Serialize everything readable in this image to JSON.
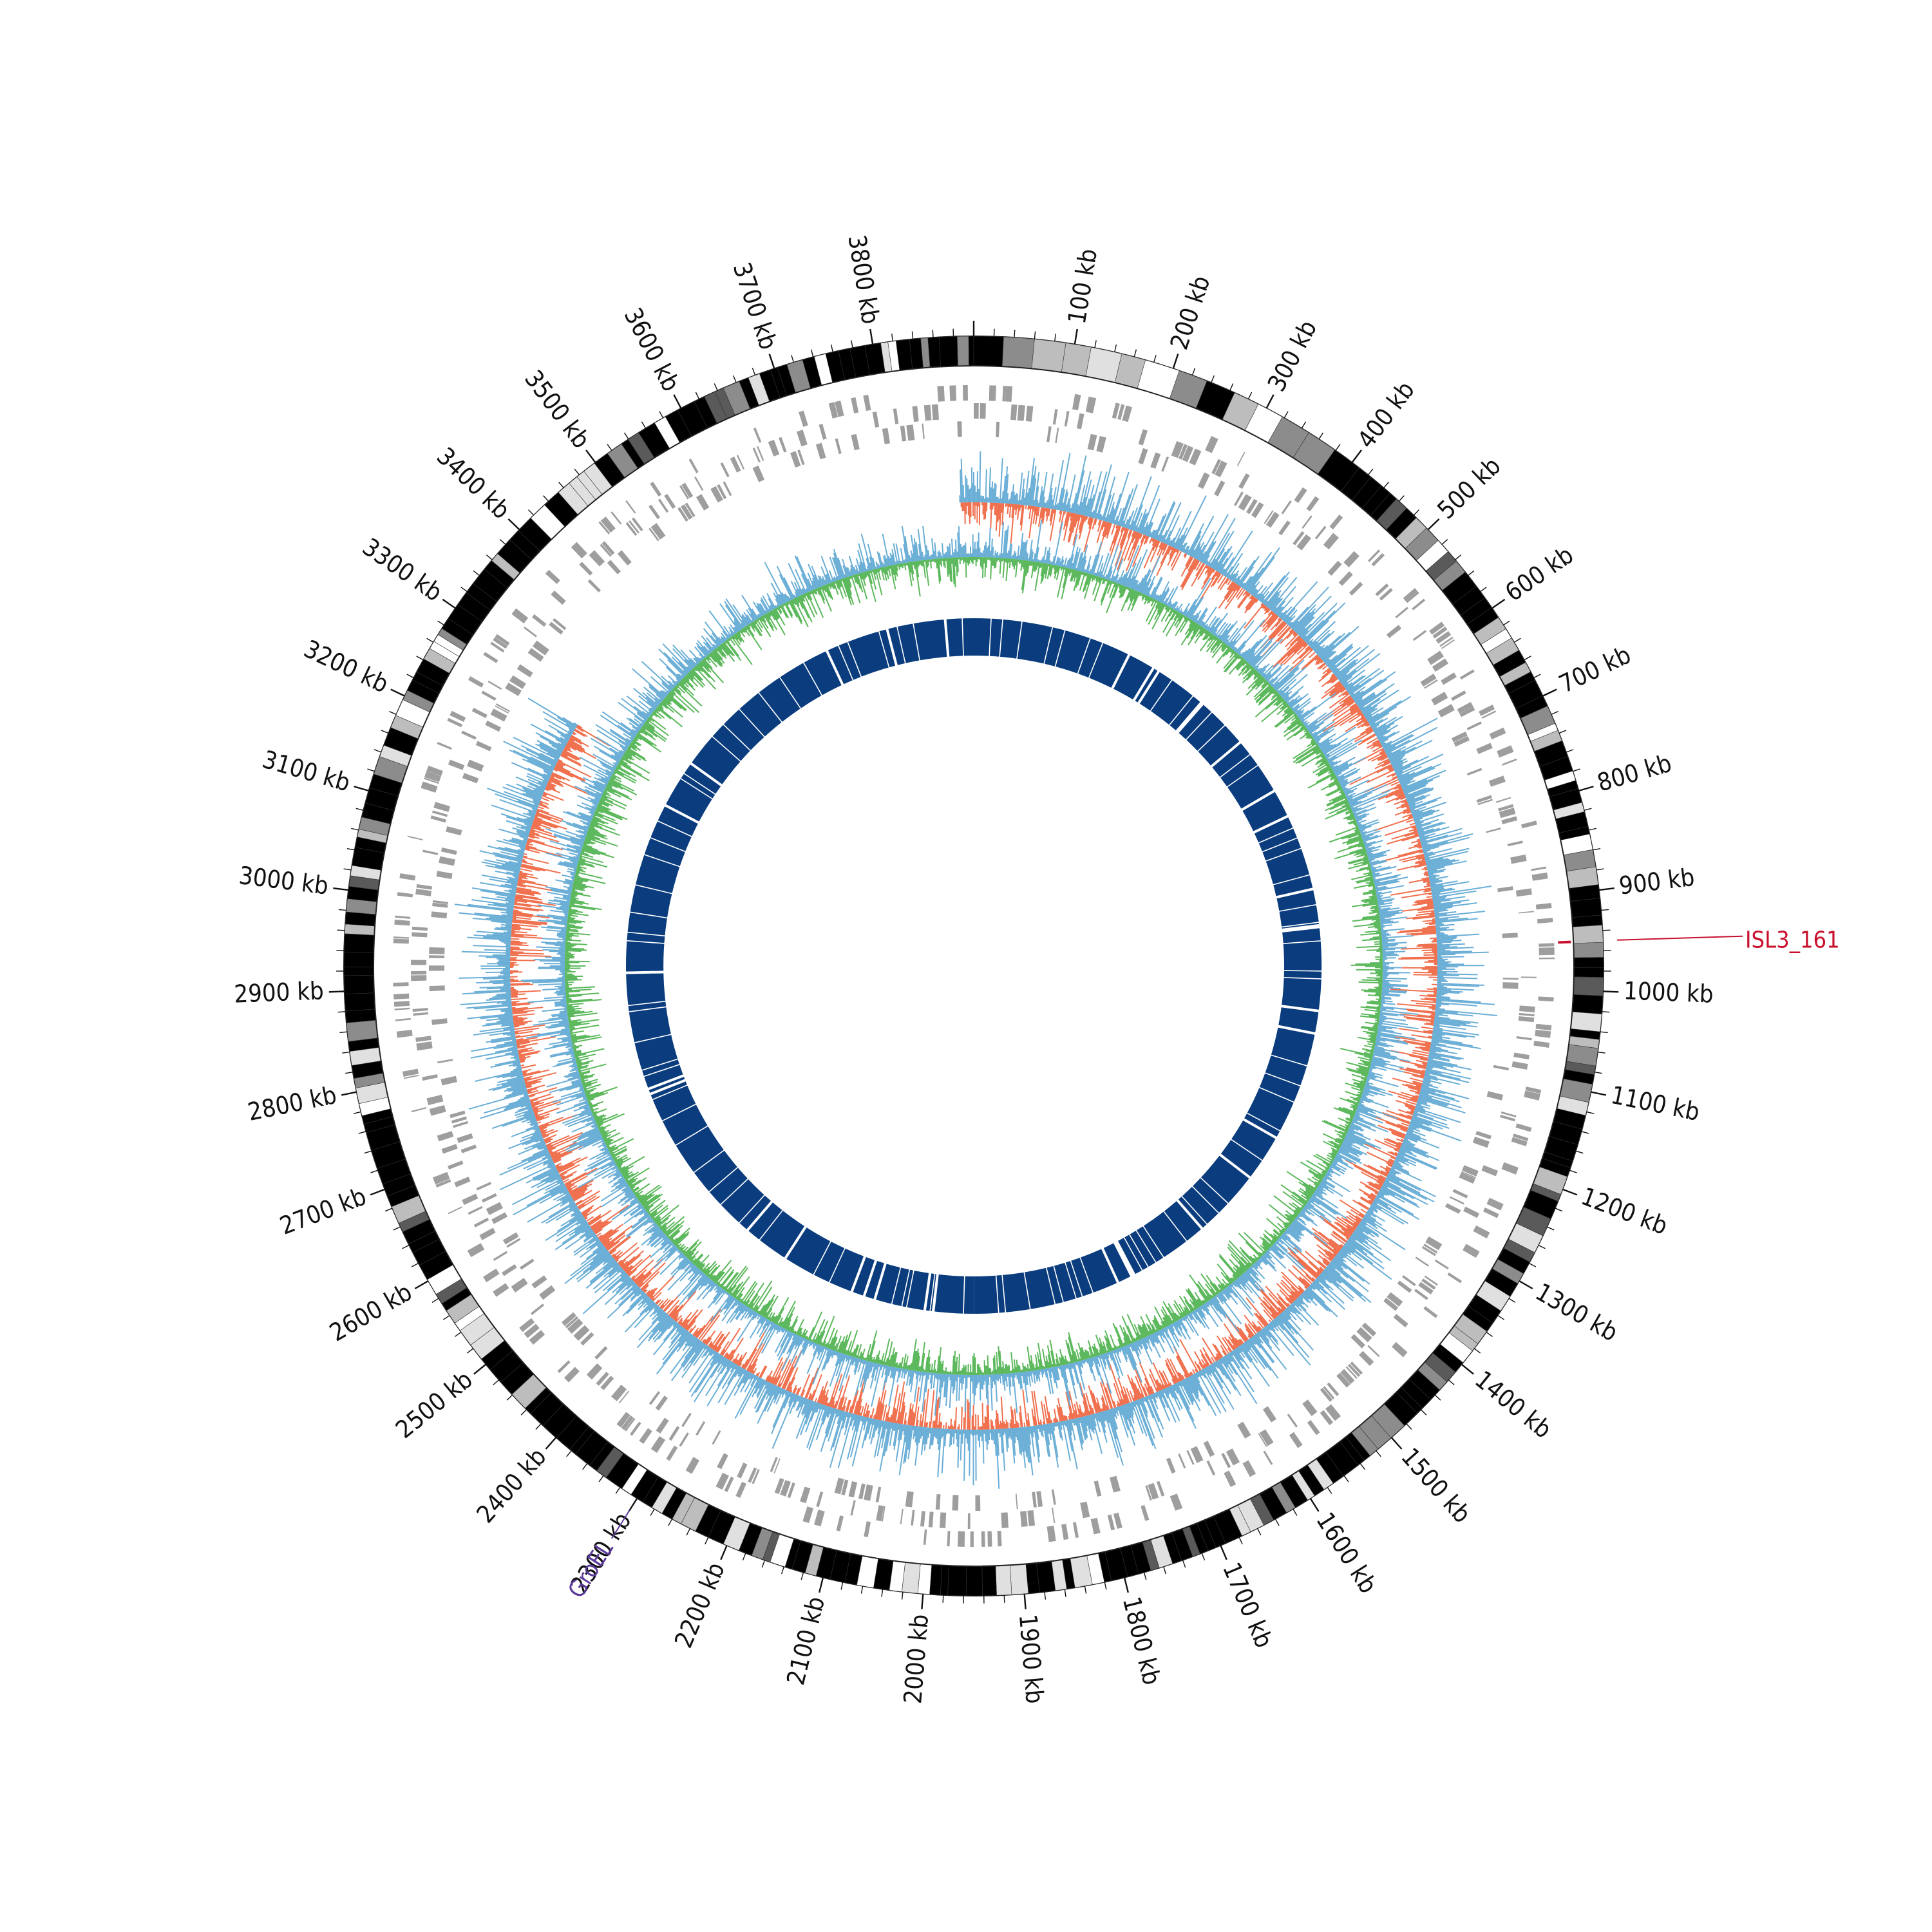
{
  "chart_data": {
    "type": "circos",
    "genome_size_kb": 3900,
    "tick_interval_kb": 100,
    "tick_unit": "kb",
    "tick_labels": [
      "100 kb",
      "200 kb",
      "300 kb",
      "400 kb",
      "500 kb",
      "600 kb",
      "700 kb",
      "800 kb",
      "900 kb",
      "1000 kb",
      "1100 kb",
      "1200 kb",
      "1300 kb",
      "1400 kb",
      "1500 kb",
      "1600 kb",
      "1700 kb",
      "1800 kb",
      "1900 kb",
      "2000 kb",
      "2100 kb",
      "2200 kb",
      "2300 kb",
      "2400 kb",
      "2500 kb",
      "2600 kb",
      "2700 kb",
      "2800 kb",
      "2900 kb",
      "3000 kb",
      "3100 kb",
      "3200 kb",
      "3300 kb",
      "3400 kb",
      "3500 kb",
      "3600 kb",
      "3700 kb",
      "3800 kb"
    ],
    "annotations": [
      {
        "label": "ISL3_161",
        "position_kb": 950,
        "color": "#c8102e"
      },
      {
        "label": "GroEL",
        "position_kb": 2300,
        "color": "#5b3a9a"
      }
    ],
    "tracks": [
      {
        "name": "ideogram",
        "kind": "banded"
      },
      {
        "name": "genes-forward-reverse",
        "kind": "tiles",
        "color": "#9b9b9b"
      },
      {
        "name": "gc-skew",
        "kind": "histogram",
        "colors": {
          "positive": "#6aaed6",
          "negative": "#f0704e"
        }
      },
      {
        "name": "gc-content",
        "kind": "histogram",
        "colors": {
          "above": "#6aaed6",
          "below": "#5cb85c"
        }
      },
      {
        "name": "homology-blocks",
        "kind": "blocks",
        "color": "#0b3d7e"
      }
    ]
  }
}
